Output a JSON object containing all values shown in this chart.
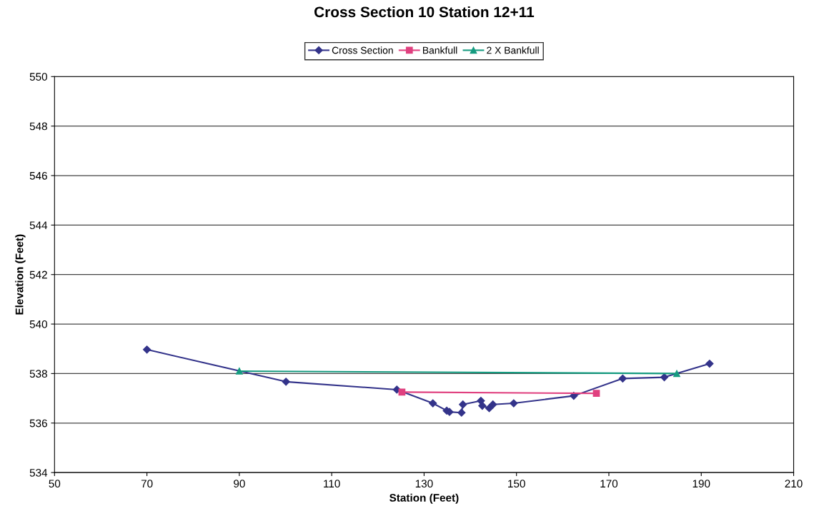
{
  "chart_data": {
    "type": "line",
    "title": "Cross Section 10 Station 12+11",
    "xlabel": "Station (Feet)",
    "ylabel": "Elevation (Feet)",
    "xlim": [
      50,
      210
    ],
    "xticks": [
      50,
      70,
      90,
      110,
      130,
      150,
      170,
      190,
      210
    ],
    "ylim": [
      534,
      550
    ],
    "yticks": [
      534,
      536,
      538,
      540,
      542,
      544,
      546,
      548,
      550
    ],
    "grid": "y",
    "legend": "top",
    "series": [
      {
        "name": "Cross Section",
        "color": "#33338a",
        "marker": "diamond",
        "x": [
          70,
          100.1,
          124.1,
          131.9,
          134.9,
          135.5,
          138.1,
          138.4,
          142.3,
          142.6,
          144.1,
          144.9,
          149.4,
          162.4,
          173,
          182,
          191.8
        ],
        "values": [
          538.97,
          537.67,
          537.35,
          536.8,
          536.5,
          536.45,
          536.42,
          536.75,
          536.9,
          536.7,
          536.6,
          536.75,
          536.8,
          537.1,
          537.8,
          537.85,
          538.4
        ]
      },
      {
        "name": "Bankfull",
        "color": "#e0407f",
        "marker": "square",
        "x": [
          125.2,
          167.3
        ],
        "values": [
          537.25,
          537.2
        ]
      },
      {
        "name": "2 X Bankfull",
        "color": "#169b80",
        "marker": "triangle",
        "x": [
          90,
          184.7
        ],
        "values": [
          538.1,
          538.0
        ]
      }
    ]
  }
}
